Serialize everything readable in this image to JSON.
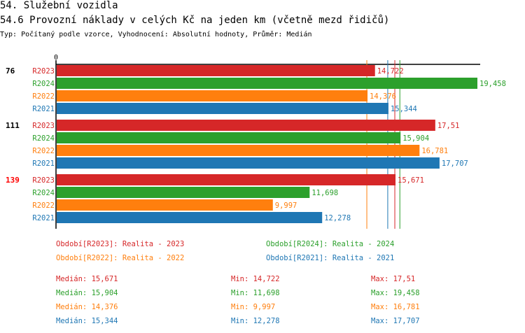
{
  "title": "54. Služební vozidla",
  "subtitle": "54.6 Provozní náklady v celých Kč na jeden km (včetně mezd řidičů)",
  "meta": "Typ: Počítaný podle vzorce, Vyhodnocení: Absolutní hodnoty, Průměr: Medián",
  "colors": {
    "R2023": "#d62728",
    "R2024": "#2ca02c",
    "R2022": "#ff7f0e",
    "R2021": "#1f77b4"
  },
  "chart_data": {
    "type": "bar",
    "orientation": "horizontal",
    "axis_tick": "0",
    "xlim": [
      0,
      19.458
    ],
    "groups": [
      {
        "label": "76",
        "highlight": false,
        "bars": [
          {
            "series": "R2023",
            "value": 14.722,
            "label": "14,722"
          },
          {
            "series": "R2024",
            "value": 19.458,
            "label": "19,458"
          },
          {
            "series": "R2022",
            "value": 14.376,
            "label": "14,376"
          },
          {
            "series": "R2021",
            "value": 15.344,
            "label": "15,344"
          }
        ]
      },
      {
        "label": "111",
        "highlight": false,
        "bars": [
          {
            "series": "R2023",
            "value": 17.51,
            "label": "17,51"
          },
          {
            "series": "R2024",
            "value": 15.904,
            "label": "15,904"
          },
          {
            "series": "R2022",
            "value": 16.781,
            "label": "16,781"
          },
          {
            "series": "R2021",
            "value": 17.707,
            "label": "17,707"
          }
        ]
      },
      {
        "label": "139",
        "highlight": true,
        "bars": [
          {
            "series": "R2023",
            "value": 15.671,
            "label": "15,671"
          },
          {
            "series": "R2024",
            "value": 11.698,
            "label": "11,698"
          },
          {
            "series": "R2022",
            "value": 9.997,
            "label": "9,997"
          },
          {
            "series": "R2021",
            "value": 12.278,
            "label": "12,278"
          }
        ]
      }
    ],
    "median_lines": [
      {
        "series": "R2022",
        "value": 14.376
      },
      {
        "series": "R2021",
        "value": 15.344
      },
      {
        "series": "R2023",
        "value": 15.671
      },
      {
        "series": "R2024",
        "value": 15.904
      }
    ],
    "legend": [
      {
        "series": "R2023",
        "text": "Období[R2023]: Realita - 2023"
      },
      {
        "series": "R2024",
        "text": "Období[R2024]: Realita - 2024"
      },
      {
        "series": "R2022",
        "text": "Období[R2022]: Realita - 2022"
      },
      {
        "series": "R2021",
        "text": "Období[R2021]: Realita - 2021"
      }
    ],
    "stats": [
      {
        "series": "R2023",
        "median": "Medián: 15,671",
        "min": "Min: 14,722",
        "max": "Max: 17,51"
      },
      {
        "series": "R2024",
        "median": "Medián: 15,904",
        "min": "Min: 11,698",
        "max": "Max: 19,458"
      },
      {
        "series": "R2022",
        "median": "Medián: 14,376",
        "min": "Min: 9,997",
        "max": "Max: 16,781"
      },
      {
        "series": "R2021",
        "median": "Medián: 15,344",
        "min": "Min: 12,278",
        "max": "Max: 17,707"
      }
    ]
  }
}
